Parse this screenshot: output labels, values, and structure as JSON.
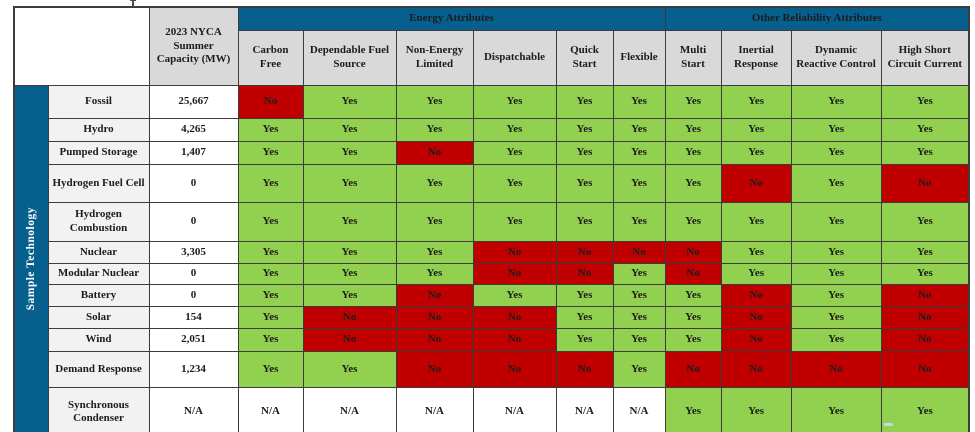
{
  "colors": {
    "header_blue": "#065F8C",
    "yes_green": "#92D050",
    "no_red": "#C00000",
    "attribute_header_gray": "#D9D9D9",
    "row_header_gray": "#F2F2F2"
  },
  "table": {
    "row_group_label": "Sample Technology",
    "capacity_header": "2023 NYCA Summer Capacity (MW)",
    "group_headers": [
      {
        "label": "Energy Attributes",
        "span": 6
      },
      {
        "label": "Other Reliability Attributes",
        "span": 4
      }
    ],
    "attribute_headers": [
      "Carbon Free",
      "Dependable Fuel Source",
      "Non-Energy Limited",
      "Dispatchable",
      "Quick Start",
      "Flexible",
      "Multi Start",
      "Inertial Response",
      "Dynamic Reactive Control",
      "High Short Circuit Current"
    ],
    "rows": [
      {
        "technology": "Fossil",
        "capacity": "25,667",
        "values": [
          "No",
          "Yes",
          "Yes",
          "Yes",
          "Yes",
          "Yes",
          "Yes",
          "Yes",
          "Yes",
          "Yes"
        ]
      },
      {
        "technology": "Hydro",
        "capacity": "4,265",
        "values": [
          "Yes",
          "Yes",
          "Yes",
          "Yes",
          "Yes",
          "Yes",
          "Yes",
          "Yes",
          "Yes",
          "Yes"
        ]
      },
      {
        "technology": "Pumped Storage",
        "capacity": "1,407",
        "values": [
          "Yes",
          "Yes",
          "No",
          "Yes",
          "Yes",
          "Yes",
          "Yes",
          "Yes",
          "Yes",
          "Yes"
        ]
      },
      {
        "technology": "Hydrogen Fuel Cell",
        "capacity": "0",
        "values": [
          "Yes",
          "Yes",
          "Yes",
          "Yes",
          "Yes",
          "Yes",
          "Yes",
          "No",
          "Yes",
          "No"
        ]
      },
      {
        "technology": "Hydrogen Combustion",
        "capacity": "0",
        "values": [
          "Yes",
          "Yes",
          "Yes",
          "Yes",
          "Yes",
          "Yes",
          "Yes",
          "Yes",
          "Yes",
          "Yes"
        ]
      },
      {
        "technology": "Nuclear",
        "capacity": "3,305",
        "values": [
          "Yes",
          "Yes",
          "Yes",
          "No",
          "No",
          "No",
          "No",
          "Yes",
          "Yes",
          "Yes"
        ]
      },
      {
        "technology": "Modular Nuclear",
        "capacity": "0",
        "values": [
          "Yes",
          "Yes",
          "Yes",
          "No",
          "No",
          "Yes",
          "No",
          "Yes",
          "Yes",
          "Yes"
        ]
      },
      {
        "technology": "Battery",
        "capacity": "0",
        "values": [
          "Yes",
          "Yes",
          "No",
          "Yes",
          "Yes",
          "Yes",
          "Yes",
          "No",
          "Yes",
          "No"
        ]
      },
      {
        "technology": "Solar",
        "capacity": "154",
        "values": [
          "Yes",
          "No",
          "No",
          "No",
          "Yes",
          "Yes",
          "Yes",
          "No",
          "Yes",
          "No"
        ]
      },
      {
        "technology": "Wind",
        "capacity": "2,051",
        "values": [
          "Yes",
          "No",
          "No",
          "No",
          "Yes",
          "Yes",
          "Yes",
          "No",
          "Yes",
          "No"
        ]
      },
      {
        "technology": "Demand Response",
        "capacity": "1,234",
        "values": [
          "Yes",
          "Yes",
          "No",
          "No",
          "No",
          "Yes",
          "No",
          "No",
          "No",
          "No"
        ]
      },
      {
        "technology": "Synchronous Condenser",
        "capacity": "N/A",
        "values": [
          "N/A",
          "N/A",
          "N/A",
          "N/A",
          "N/A",
          "N/A",
          "Yes",
          "Yes",
          "Yes",
          "Yes"
        ]
      }
    ]
  }
}
